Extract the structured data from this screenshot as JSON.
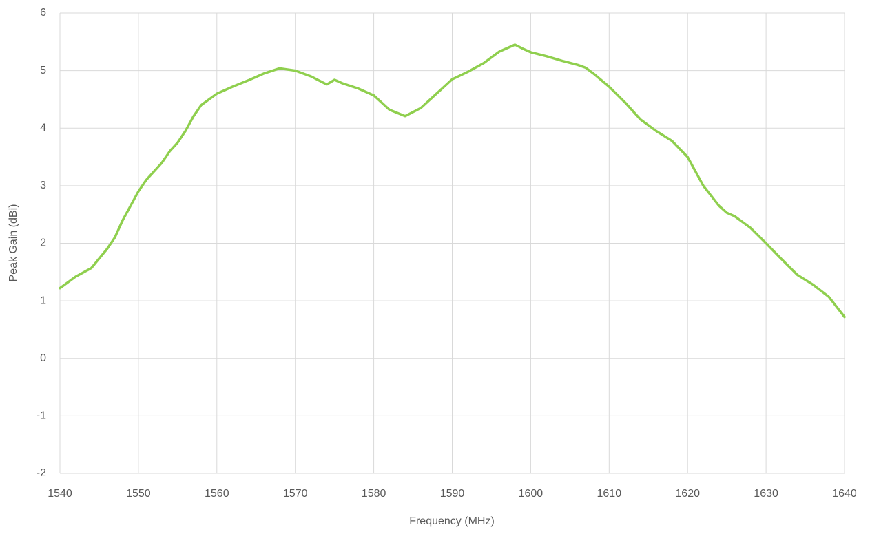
{
  "chart_data": {
    "type": "line",
    "x_label": "Frequency (MHz)",
    "y_label": "Peak Gain (dBi)",
    "x": [
      1540,
      1542,
      1544,
      1546,
      1547,
      1548,
      1550,
      1551,
      1553,
      1554,
      1555,
      1556,
      1557,
      1558,
      1560,
      1562,
      1564,
      1566,
      1568,
      1570,
      1572,
      1574,
      1575,
      1576,
      1578,
      1580,
      1582,
      1584,
      1586,
      1588,
      1590,
      1592,
      1594,
      1596,
      1598,
      1599,
      1600,
      1602,
      1604,
      1606,
      1607,
      1608,
      1610,
      1612,
      1614,
      1616,
      1618,
      1620,
      1622,
      1624,
      1625,
      1626,
      1628,
      1630,
      1632,
      1634,
      1636,
      1638,
      1640
    ],
    "series": [
      {
        "name": "Peak Gain",
        "color": "#8fcf4e",
        "values": [
          1.22,
          1.42,
          1.57,
          1.9,
          2.1,
          2.4,
          2.9,
          3.1,
          3.4,
          3.6,
          3.75,
          3.95,
          4.2,
          4.4,
          4.6,
          4.72,
          4.83,
          4.95,
          5.04,
          5.0,
          4.9,
          4.76,
          4.84,
          4.78,
          4.69,
          4.57,
          4.32,
          4.21,
          4.35,
          4.6,
          4.85,
          4.98,
          5.13,
          5.33,
          5.45,
          5.38,
          5.32,
          5.25,
          5.17,
          5.1,
          5.05,
          4.95,
          4.72,
          4.45,
          4.15,
          3.95,
          3.78,
          3.5,
          3.0,
          2.65,
          2.53,
          2.47,
          2.27,
          2.0,
          1.72,
          1.45,
          1.28,
          1.07,
          0.72
        ]
      }
    ],
    "xlim": [
      1540,
      1640
    ],
    "xticks": [
      1540,
      1550,
      1560,
      1570,
      1580,
      1590,
      1600,
      1610,
      1620,
      1630,
      1640
    ],
    "ylim": [
      -2,
      6
    ],
    "yticks": [
      -2,
      -1,
      0,
      1,
      2,
      3,
      4,
      5,
      6
    ],
    "grid": true
  }
}
